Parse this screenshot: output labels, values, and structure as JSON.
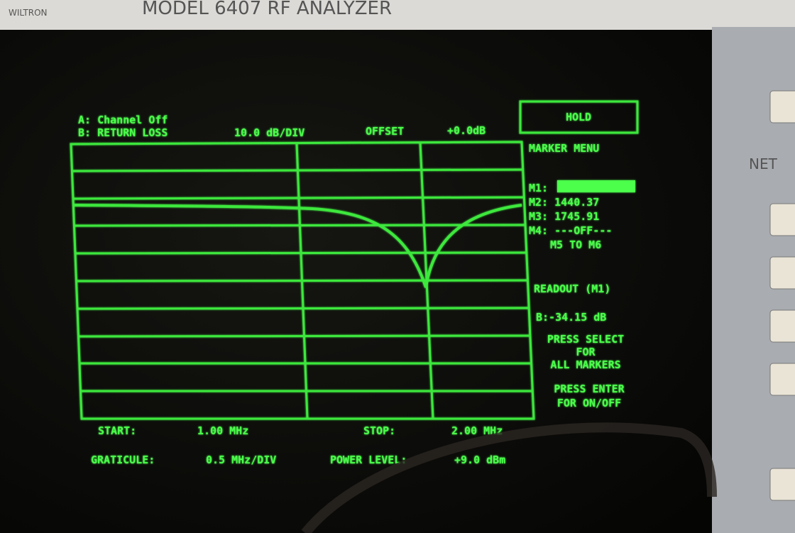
{
  "bezel": {
    "brand": "WILTRON",
    "model": "MODEL 6407 RF ANALYZER",
    "panel_label": "NET"
  },
  "screen": {
    "channel_a": "A: Channel Off",
    "channel_b": "B: RETURN LOSS",
    "scale": "10.0 dB/DIV",
    "offset_label": "OFFSET",
    "offset_value": "+0.0dB",
    "start_label": "START:",
    "start_value": "1.00 MHz",
    "stop_label": "STOP:",
    "stop_value": "2.00 MHz",
    "graticule_label": "GRATICULE:",
    "graticule_value": "0.5 MHz/DIV",
    "power_label": "POWER LEVEL:",
    "power_value": "+9.0 dBm"
  },
  "menu": {
    "hold": "HOLD",
    "title": "MARKER MENU",
    "markers": [
      "M1:",
      "M2: 1440.37",
      "M3: 1745.91",
      "M4: ---OFF---"
    ],
    "delta": "M5 TO M6",
    "readout_title": "READOUT (M1)",
    "readout_value": "B:-34.15 dB",
    "select_help": [
      "PRESS SELECT",
      "FOR",
      "ALL MARKERS"
    ],
    "enter_help": [
      "PRESS ENTER",
      "FOR ON/OFF"
    ]
  }
}
